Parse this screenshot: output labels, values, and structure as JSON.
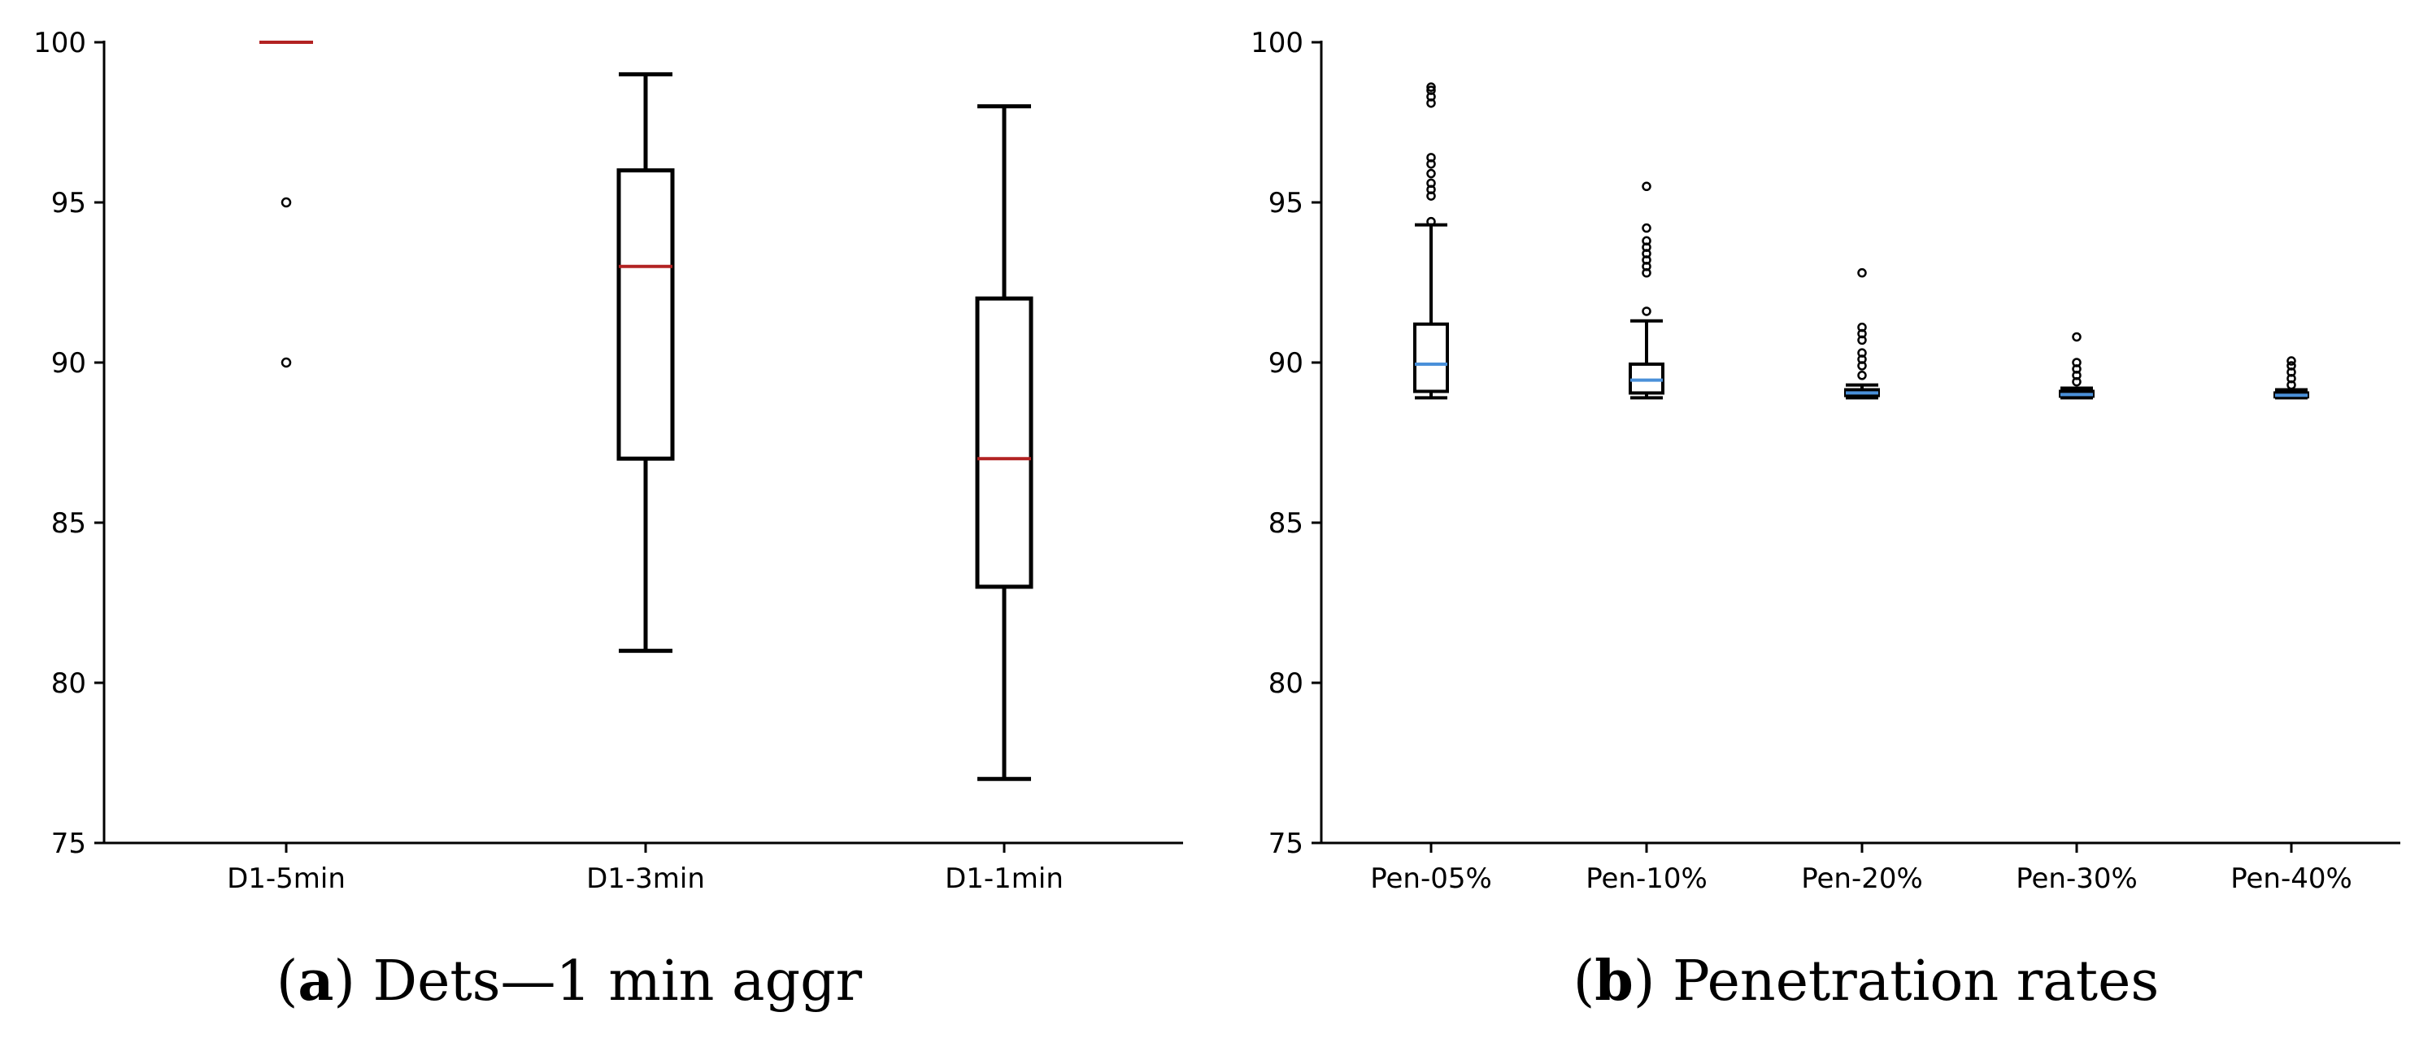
{
  "chart_data": [
    {
      "type": "box",
      "caption": {
        "letter": "a",
        "text": "Dets—1 min aggr"
      },
      "ylim": [
        75,
        100
      ],
      "yticks": [
        75,
        80,
        85,
        90,
        95,
        100
      ],
      "grid": false,
      "box_color": "#000000",
      "median_color": "#b22222",
      "categories": [
        "D1-5min",
        "D1-3min",
        "D1-1min"
      ],
      "boxes": [
        {
          "label": "D1-5min",
          "whisker_low": 100,
          "q1": 100,
          "median": 100,
          "q3": 100,
          "whisker_high": 100,
          "outliers": [
            95,
            90
          ]
        },
        {
          "label": "D1-3min",
          "whisker_low": 81,
          "q1": 87,
          "median": 93,
          "q3": 96,
          "whisker_high": 99,
          "outliers": []
        },
        {
          "label": "D1-1min",
          "whisker_low": 77,
          "q1": 83,
          "median": 87,
          "q3": 92,
          "whisker_high": 98,
          "outliers": []
        }
      ]
    },
    {
      "type": "box",
      "caption": {
        "letter": "b",
        "text": "Penetration rates"
      },
      "ylim": [
        75,
        100
      ],
      "yticks": [
        75,
        80,
        85,
        90,
        95,
        100
      ],
      "grid": false,
      "box_color": "#000000",
      "median_color": "#4a90d9",
      "categories": [
        "Pen-05%",
        "Pen-10%",
        "Pen-20%",
        "Pen-30%",
        "Pen-40%"
      ],
      "boxes": [
        {
          "label": "Pen-05%",
          "whisker_low": 88.9,
          "q1": 89.1,
          "median": 89.95,
          "q3": 91.2,
          "whisker_high": 94.3,
          "outliers": [
            94.4,
            95.2,
            95.4,
            95.6,
            95.9,
            96.2,
            96.4,
            98.1,
            98.3,
            98.5,
            98.6
          ]
        },
        {
          "label": "Pen-10%",
          "whisker_low": 88.9,
          "q1": 89.05,
          "median": 89.45,
          "q3": 89.95,
          "whisker_high": 91.3,
          "outliers": [
            91.6,
            92.8,
            93.0,
            93.2,
            93.4,
            93.6,
            93.8,
            94.2,
            95.5
          ]
        },
        {
          "label": "Pen-20%",
          "whisker_low": 88.9,
          "q1": 88.97,
          "median": 89.05,
          "q3": 89.15,
          "whisker_high": 89.3,
          "outliers": [
            89.6,
            89.9,
            90.1,
            90.3,
            90.7,
            90.9,
            91.1,
            92.8
          ]
        },
        {
          "label": "Pen-30%",
          "whisker_low": 88.9,
          "q1": 88.95,
          "median": 89.0,
          "q3": 89.1,
          "whisker_high": 89.2,
          "outliers": [
            89.4,
            89.6,
            89.8,
            90.0,
            90.8
          ]
        },
        {
          "label": "Pen-40%",
          "whisker_low": 88.9,
          "q1": 88.93,
          "median": 88.98,
          "q3": 89.05,
          "whisker_high": 89.15,
          "outliers": [
            89.3,
            89.5,
            89.7,
            89.9,
            90.05
          ]
        }
      ]
    }
  ]
}
